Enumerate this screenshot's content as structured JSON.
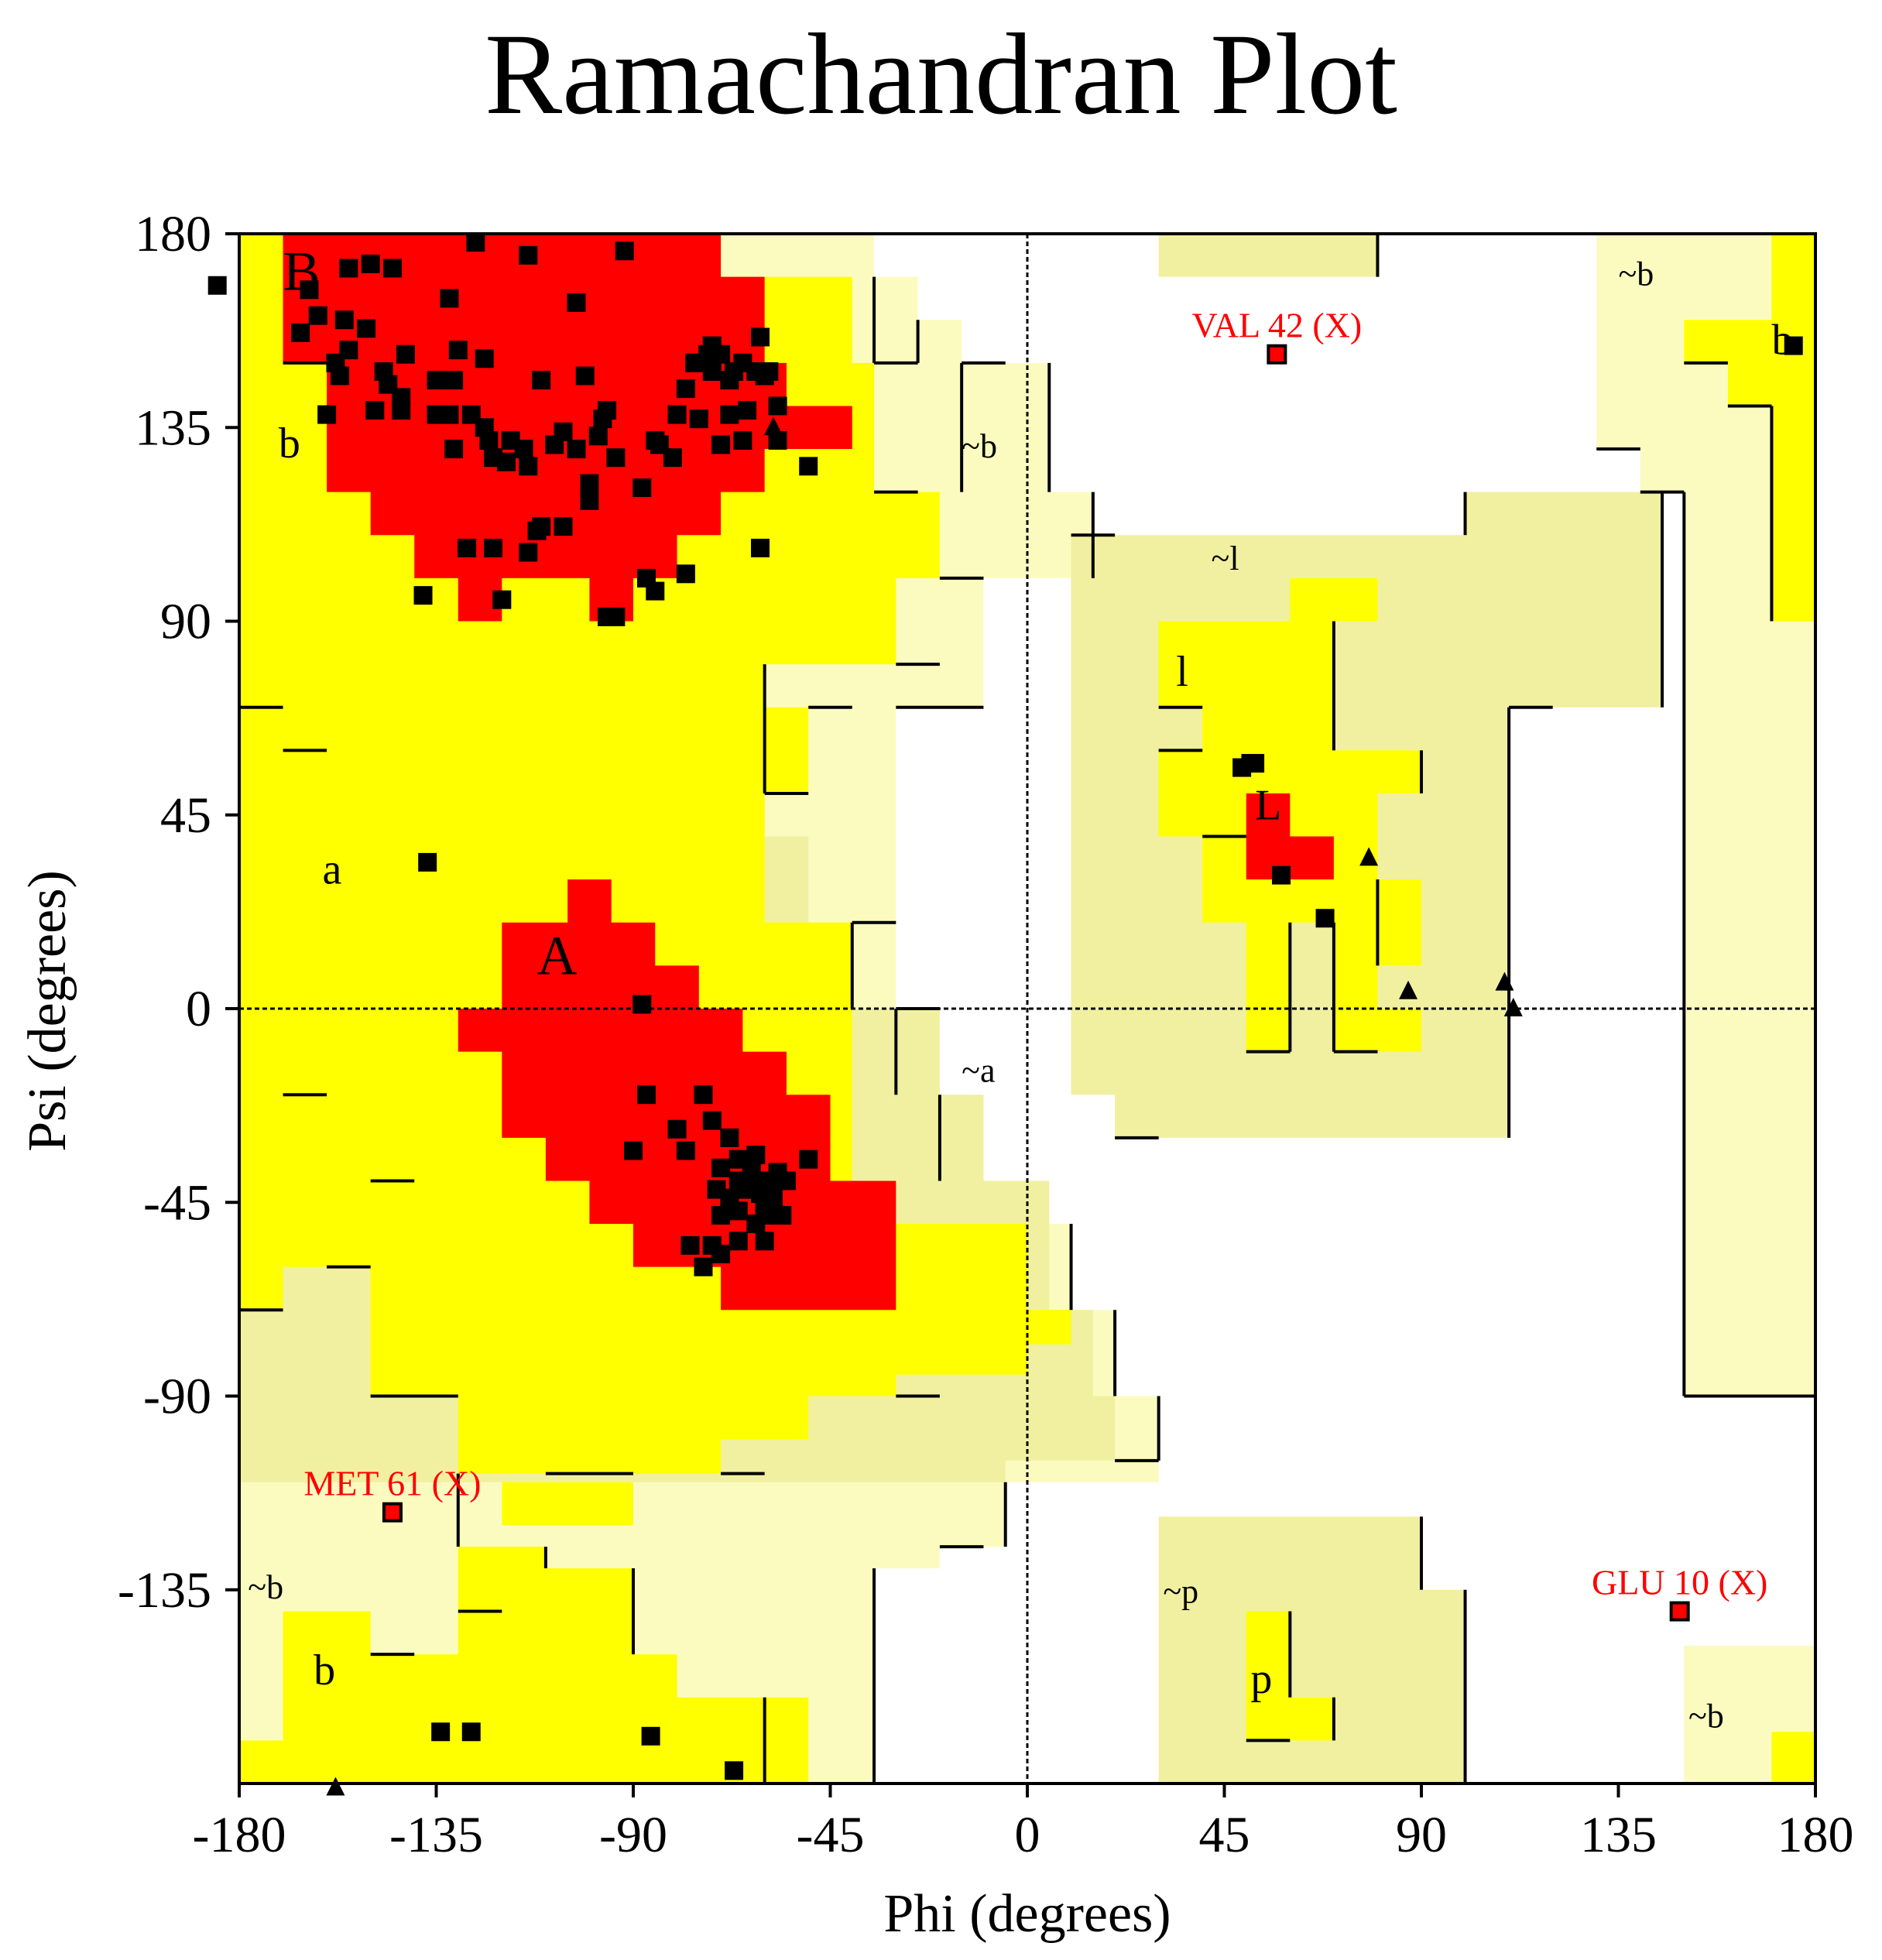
{
  "chart_data": {
    "type": "scatter",
    "title": "Ramachandran Plot",
    "xlabel": "Phi (degrees)",
    "ylabel": "Psi (degrees)",
    "xlim": [
      -180,
      180
    ],
    "ylim": [
      -180,
      180
    ],
    "xticks": [
      -180,
      -135,
      -90,
      -45,
      0,
      45,
      90,
      135,
      180
    ],
    "yticks": [
      180,
      135,
      90,
      45,
      0,
      -45,
      -90,
      -135
    ],
    "colors": {
      "core": "#ff0000",
      "allowed": "#ffff00",
      "generous": "#f0f0a0",
      "generous_alt": "#fbfbc0",
      "outlier": "#ff0000",
      "residue": "#000000"
    },
    "region_labels": [
      {
        "text": "B",
        "phi": -170,
        "psi": 167
      },
      {
        "text": "b",
        "phi": -171,
        "psi": 128
      },
      {
        "text": "~b",
        "phi": -15,
        "psi": 128
      },
      {
        "text": "a",
        "phi": -161,
        "psi": 29
      },
      {
        "text": "A",
        "phi": -112,
        "psi": 8
      },
      {
        "text": "~a",
        "phi": -15,
        "psi": -17
      },
      {
        "text": "~l",
        "phi": 42,
        "psi": 102
      },
      {
        "text": "l",
        "phi": 34,
        "psi": 75
      },
      {
        "text": "L",
        "phi": 52,
        "psi": 44
      },
      {
        "text": "~b",
        "phi": 135,
        "psi": 168
      },
      {
        "text": "b",
        "phi": 170,
        "psi": 152
      },
      {
        "text": "~b",
        "phi": -178,
        "psi": -137
      },
      {
        "text": "b",
        "phi": -163,
        "psi": -157
      },
      {
        "text": "~p",
        "phi": 31,
        "psi": -138
      },
      {
        "text": "p",
        "phi": 51,
        "psi": -159
      },
      {
        "text": "~b",
        "phi": 151,
        "psi": -167
      }
    ],
    "outliers": [
      {
        "label": "VAL 42 (X)",
        "phi": 57,
        "psi": 152
      },
      {
        "label": "MET 61 (X)",
        "phi": -145,
        "psi": -117
      },
      {
        "label": "GLU 10 (X)",
        "phi": 149,
        "psi": -140
      }
    ],
    "residues_squares": [
      [
        -185,
        168
      ],
      [
        -164,
        167
      ],
      [
        -155,
        172
      ],
      [
        -150,
        173
      ],
      [
        -145,
        172
      ],
      [
        -126,
        178
      ],
      [
        -114,
        175
      ],
      [
        -92,
        176
      ],
      [
        -132,
        165
      ],
      [
        -103,
        164
      ],
      [
        -166,
        157
      ],
      [
        -162,
        161
      ],
      [
        -156,
        160
      ],
      [
        -151,
        158
      ],
      [
        -155,
        153
      ],
      [
        -147,
        148
      ],
      [
        -142,
        152
      ],
      [
        -146,
        145
      ],
      [
        -130,
        153
      ],
      [
        -131,
        146
      ],
      [
        -135,
        146
      ],
      [
        -124,
        151
      ],
      [
        -111,
        146
      ],
      [
        -101,
        147
      ],
      [
        -158,
        150
      ],
      [
        -157,
        147
      ],
      [
        -160,
        138
      ],
      [
        -149,
        139
      ],
      [
        -143,
        142
      ],
      [
        -143,
        139
      ],
      [
        -135,
        138
      ],
      [
        -132,
        138
      ],
      [
        -127,
        138
      ],
      [
        -124,
        135
      ],
      [
        -131,
        130
      ],
      [
        -123,
        132
      ],
      [
        -122,
        128
      ],
      [
        -119,
        127
      ],
      [
        -115,
        130
      ],
      [
        -106,
        134
      ],
      [
        -108,
        131
      ],
      [
        -118,
        132
      ],
      [
        -114,
        126
      ],
      [
        -103,
        130
      ],
      [
        -96,
        139
      ],
      [
        -97,
        137
      ],
      [
        -98,
        133
      ],
      [
        -94,
        128
      ],
      [
        -100,
        122
      ],
      [
        -100,
        118
      ],
      [
        -106,
        112
      ],
      [
        -112,
        111
      ],
      [
        -128,
        107
      ],
      [
        -122,
        107
      ],
      [
        -114,
        106
      ],
      [
        -88,
        121
      ],
      [
        -87,
        100
      ],
      [
        -85,
        97
      ],
      [
        -94,
        91
      ],
      [
        -96,
        91
      ],
      [
        -111,
        112
      ],
      [
        -78,
        101
      ],
      [
        -61,
        107
      ],
      [
        -120,
        95
      ],
      [
        -138,
        96
      ],
      [
        -73,
        152
      ],
      [
        -72,
        154
      ],
      [
        -72,
        148
      ],
      [
        -70,
        152
      ],
      [
        -67,
        148
      ],
      [
        -65,
        150
      ],
      [
        -62,
        148
      ],
      [
        -60,
        147
      ],
      [
        -61,
        156
      ],
      [
        -76,
        150
      ],
      [
        -78,
        144
      ],
      [
        -75,
        137
      ],
      [
        -80,
        138
      ],
      [
        -84,
        131
      ],
      [
        -81,
        128
      ],
      [
        -85,
        132
      ],
      [
        -70,
        131
      ],
      [
        -65,
        132
      ],
      [
        -57,
        132
      ],
      [
        -64,
        139
      ],
      [
        -50,
        126
      ],
      [
        -57,
        140
      ],
      [
        -59,
        148
      ],
      [
        -68,
        138
      ],
      [
        -68,
        146
      ],
      [
        -137,
        34
      ],
      [
        -88,
        1
      ],
      [
        -87,
        -20
      ],
      [
        -90,
        -33
      ],
      [
        -80,
        -28
      ],
      [
        -78,
        -33
      ],
      [
        -74,
        -20
      ],
      [
        -72,
        -26
      ],
      [
        -68,
        -30
      ],
      [
        -70,
        -37
      ],
      [
        -66,
        -35
      ],
      [
        -63,
        -38
      ],
      [
        -62,
        -34
      ],
      [
        -64,
        -42
      ],
      [
        -60,
        -42
      ],
      [
        -57,
        -38
      ],
      [
        -58,
        -44
      ],
      [
        -60,
        -48
      ],
      [
        -62,
        -50
      ],
      [
        -66,
        -47
      ],
      [
        -68,
        -44
      ],
      [
        -70,
        -48
      ],
      [
        -72,
        -55
      ],
      [
        -66,
        -54
      ],
      [
        -60,
        -54
      ],
      [
        -56,
        -48
      ],
      [
        -55,
        -40
      ],
      [
        -50,
        -35
      ],
      [
        -74,
        -60
      ],
      [
        -70,
        -57
      ],
      [
        -77,
        -55
      ],
      [
        -60,
        -46
      ],
      [
        -61,
        -43
      ],
      [
        -63,
        -42
      ],
      [
        -59,
        -40
      ],
      [
        -66,
        -40
      ],
      [
        -71,
        -42
      ],
      [
        49,
        56
      ],
      [
        51,
        57
      ],
      [
        52,
        57
      ],
      [
        58,
        31
      ],
      [
        68,
        21
      ],
      [
        175,
        154
      ],
      [
        -134,
        -168
      ],
      [
        -127,
        -168
      ],
      [
        -86,
        -169
      ],
      [
        -67,
        -177
      ]
    ],
    "residues_triangles": [
      [
        -58,
        135
      ],
      [
        78,
        35
      ],
      [
        87,
        4
      ],
      [
        109,
        6
      ],
      [
        111,
        0
      ],
      [
        -158,
        -181
      ]
    ]
  }
}
